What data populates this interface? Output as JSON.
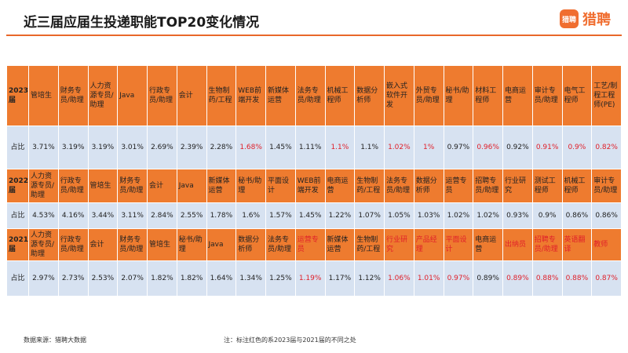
{
  "title": "近三届应届生投递职能TOP20变化情况",
  "logo": {
    "mark": "猎聘",
    "text": "猎聘"
  },
  "footer": {
    "source": "数据来源：猎聘大数据",
    "note": "注：标注红色的系2023届与2021届的不同之处"
  },
  "rows_2023": {
    "year": "2023届",
    "label": "占比",
    "jobs": [
      "管培生",
      "财务专员/助理",
      "人力资源专员/助理",
      "Java",
      "行政专员/助理",
      "会计",
      "生物制药/工程",
      "WEB前端开发",
      "新媒体运营",
      "法务专员/助理",
      "机械工程师",
      "数据分析师",
      "嵌入式软件开发",
      "外贸专员/助理",
      "秘书/助理",
      "材料工程师",
      "电商运营",
      "审计专员/助理",
      "电气工程师",
      "工艺/制程工程师(PE)"
    ],
    "values": [
      "3.71%",
      "3.19%",
      "3.19%",
      "3.01%",
      "2.69%",
      "2.39%",
      "2.28%",
      "1.68%",
      "1.45%",
      "1.11%",
      "1.1%",
      "1.1%",
      "1.02%",
      "1%",
      "0.97%",
      "0.96%",
      "0.92%",
      "0.91%",
      "0.9%",
      "0.82%"
    ],
    "red": [
      false,
      false,
      false,
      false,
      false,
      false,
      false,
      true,
      false,
      false,
      true,
      false,
      true,
      true,
      false,
      true,
      false,
      true,
      true,
      true
    ]
  },
  "rows_2022": {
    "year": "2022届",
    "label": "占比",
    "jobs": [
      "人力资源专员/助理",
      "行政专员/助理",
      "管培生",
      "财务专员/助理",
      "会计",
      "Java",
      "新媒体运营",
      "秘书/助理",
      "平面设计",
      "WEB前端开发",
      "电商运营",
      "生物制药/工程",
      "法务专员/助理",
      "数据分析师",
      "运营专员",
      "招聘专员/助理",
      "行业研究",
      "测试工程师",
      "机械工程师",
      "审计专员/助理"
    ],
    "values": [
      "4.53%",
      "4.16%",
      "3.44%",
      "3.11%",
      "2.84%",
      "2.55%",
      "1.78%",
      "1.6%",
      "1.57%",
      "1.45%",
      "1.22%",
      "1.07%",
      "1.05%",
      "1.03%",
      "1.02%",
      "1.02%",
      "0.93%",
      "0.9%",
      "0.86%",
      "0.86%"
    ]
  },
  "rows_2021": {
    "year": "2021届",
    "label": "占比",
    "jobs": [
      "人力资源专员/助理",
      "行政专员/助理",
      "会计",
      "财务专员/助理",
      "管培生",
      "秘书/助理",
      "Java",
      "数据分析师",
      "法务专员/助理",
      "运营专员",
      "新媒体运营",
      "生物制药/工程",
      "行业研究",
      "产品经理",
      "平面设计",
      "电商运营",
      "出纳员",
      "招聘专员/助理",
      "英语翻译",
      "教师"
    ],
    "values": [
      "2.97%",
      "2.73%",
      "2.53%",
      "2.07%",
      "1.82%",
      "1.82%",
      "1.64%",
      "1.34%",
      "1.25%",
      "1.19%",
      "1.17%",
      "1.12%",
      "1.06%",
      "1.01%",
      "0.97%",
      "0.89%",
      "0.89%",
      "0.88%",
      "0.88%",
      "0.87%"
    ],
    "red_jobs": [
      false,
      false,
      false,
      false,
      false,
      false,
      false,
      false,
      false,
      true,
      false,
      false,
      true,
      true,
      true,
      false,
      true,
      true,
      true,
      true
    ],
    "red": [
      false,
      false,
      false,
      false,
      false,
      false,
      false,
      false,
      false,
      true,
      false,
      false,
      true,
      true,
      true,
      false,
      true,
      true,
      true,
      true
    ]
  },
  "colors": {
    "header_orange": "#ee7b2f",
    "value_blue": "#d7e2f1",
    "red_text": "#e0202a",
    "accent_line": "#e8672a"
  }
}
